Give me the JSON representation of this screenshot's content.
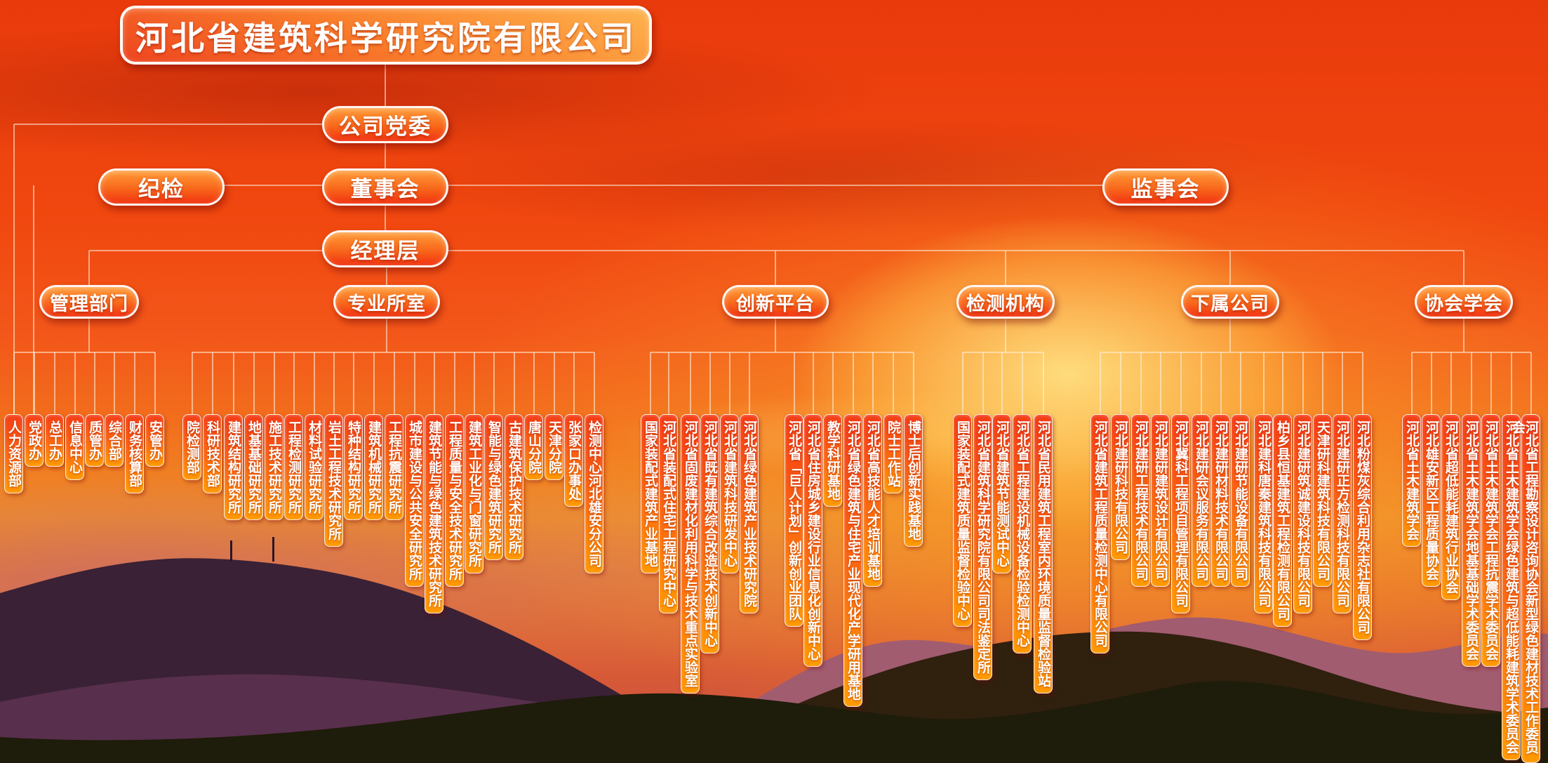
{
  "title": "河北省建筑科学研究院有限公司",
  "top_nodes": [
    {
      "id": "party",
      "label": "公司党委"
    },
    {
      "id": "discipline",
      "label": "纪检"
    },
    {
      "id": "board",
      "label": "董事会"
    },
    {
      "id": "supervisory",
      "label": "监事会"
    },
    {
      "id": "managers",
      "label": "经理层"
    }
  ],
  "groups": [
    {
      "label": "管理部门",
      "children": [
        {
          "label": "人力资源部"
        },
        {
          "label": "党政办"
        },
        {
          "label": "总工办"
        },
        {
          "label": "信息中心"
        },
        {
          "label": "质管办"
        },
        {
          "label": "综合部"
        },
        {
          "label": "财务核算部"
        },
        {
          "label": "安管办"
        }
      ]
    },
    {
      "label": "专业所室",
      "children": [
        {
          "label": "院检测部"
        },
        {
          "label": "科研技术部"
        },
        {
          "label": "建筑结构研究所"
        },
        {
          "label": "地基基础研究所"
        },
        {
          "label": "施工技术研究所"
        },
        {
          "label": "工程检测研究所"
        },
        {
          "label": "材料试验研究所"
        },
        {
          "label": "岩土工程技术研究所"
        },
        {
          "label": "特种结构研究所"
        },
        {
          "label": "建筑机械研究所"
        },
        {
          "label": "工程抗震研究所"
        },
        {
          "label": "城市建设与公共安全研究所"
        },
        {
          "label": "建筑节能与绿色建筑技术研究所"
        },
        {
          "label": "工程质量与安全技术研究所"
        },
        {
          "label": "建筑工业化与门窗研究所"
        },
        {
          "label": "智能与绿色建筑研究所"
        },
        {
          "label": "古建筑保护技术研究所"
        },
        {
          "label": "唐山分院"
        },
        {
          "label": "天津分院"
        },
        {
          "label": "张家口办事处"
        },
        {
          "label": "检测中心河北雄安分公司"
        }
      ]
    },
    {
      "label": "创新平台",
      "children": [
        {
          "label": "国家装配式建筑产业基地"
        },
        {
          "label": "河北省装配式住宅工程研究中心"
        },
        {
          "label": "河北省固废建材化利用科学与技术重点实验室"
        },
        {
          "label": "河北省既有建筑综合改造技术创新中心"
        },
        {
          "label": "河北省建筑科技研发中心"
        },
        {
          "label": "河北省绿色建筑产业技术研究院"
        },
        {
          "label": "河北省「巨人计划」创新创业团队"
        },
        {
          "label": "河北省住房城乡建设行业信息化创新中心"
        },
        {
          "label": "教学科研基地"
        },
        {
          "label": "河北省绿色建筑与住宅产业现代化产学研用基地"
        },
        {
          "label": "河北省高技能人才培训基地"
        },
        {
          "label": "院士工作站"
        },
        {
          "label": "博士后创新实践基地"
        }
      ]
    },
    {
      "label": "检测机构",
      "children": [
        {
          "label": "国家装配式建筑质量监督检验中心"
        },
        {
          "label": "河北省建筑科学研究院有限公司司法鉴定所"
        },
        {
          "label": "河北省建筑节能测试中心"
        },
        {
          "label": "河北省工程建设机械设备检验检测中心"
        },
        {
          "label": "河北省民用建筑工程室内环境质量监督检验站"
        }
      ]
    },
    {
      "label": "下属公司",
      "children": [
        {
          "label": "河北省建筑工程质量检测中心有限公司"
        },
        {
          "label": "河北建研科技有限公司"
        },
        {
          "label": "河北建研工程技术有限公司"
        },
        {
          "label": "河北建研建筑设计有限公司"
        },
        {
          "label": "河北冀科工程项目管理有限公司"
        },
        {
          "label": "河北建研会议服务有限公司"
        },
        {
          "label": "河北建研材料技术有限公司"
        },
        {
          "label": "河北建研节能设备有限公司"
        },
        {
          "label": "河北建科唐秦建筑科技有限公司"
        },
        {
          "label": "柏乡县恒基建筑工程检测有限公司"
        },
        {
          "label": "河北建研筑诚建设科技有限公司"
        },
        {
          "label": "天津研科建筑科技有限公司"
        },
        {
          "label": "河北建研正方检测科技有限公司"
        },
        {
          "label": "河北粉煤灰综合利用杂志社有限公司"
        }
      ]
    },
    {
      "label": "协会学会",
      "children": [
        {
          "label": "河北省土木建筑学会"
        },
        {
          "label": "河北雄安新区工程质量协会"
        },
        {
          "label": "河北省超低能耗建筑行业协会"
        },
        {
          "label": "河北省土木建筑学会地基基础学术委员会"
        },
        {
          "label": "河北省土木建筑学会工程抗震学术委员会"
        },
        {
          "label": "河北省土木建筑学会绿色建筑与超低能耗建筑学术委员会"
        },
        {
          "label": "河北省工程勘察设计咨询协会新型绿色建材技术工作委员会"
        }
      ]
    }
  ],
  "colors": {
    "box_top": "#ff9c38",
    "box_bottom": "#f23210",
    "leaf_top": "#f43c16",
    "leaf_bottom": "#ff9900",
    "wire": "rgba(255,240,222,0.75)",
    "sky_red": "#ee4010",
    "sun_gold": "#ffc94f",
    "mountain_purple": "#3a2135",
    "mountain_dark": "#30200e"
  }
}
